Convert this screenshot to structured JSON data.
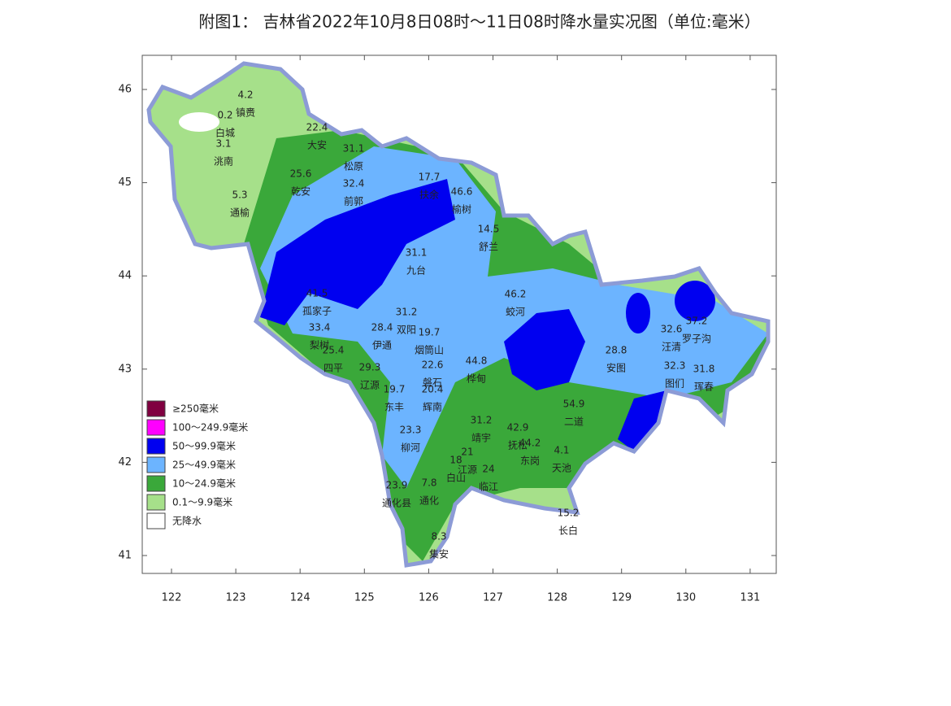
{
  "title": "附图1： 吉林省2022年10月8日08时～11日08时降水量实况图（单位:毫米）",
  "axes": {
    "lon_ticks": [
      122,
      123,
      124,
      125,
      126,
      127,
      128,
      129,
      130,
      131
    ],
    "lat_ticks": [
      41,
      42,
      43,
      44,
      45,
      46
    ]
  },
  "legend": [
    {
      "label": "≥250毫米",
      "color": "#800040"
    },
    {
      "label": "100～249.9毫米",
      "color": "#ff00ff"
    },
    {
      "label": "50～99.9毫米",
      "color": "#0000f0"
    },
    {
      "label": "25～49.9毫米",
      "color": "#6cb4ff"
    },
    {
      "label": "10～24.9毫米",
      "color": "#3aa83a"
    },
    {
      "label": "0.1～9.9毫米",
      "color": "#a6e08a"
    },
    {
      "label": "无降水",
      "color": "#ffffff"
    }
  ],
  "stations": [
    {
      "value": 4.2,
      "name": "镇赉"
    },
    {
      "value": 0.2,
      "name": "白城"
    },
    {
      "value": 3.1,
      "name": "洮南"
    },
    {
      "value": 5.3,
      "name": "通榆"
    },
    {
      "value": 22.4,
      "name": "大安"
    },
    {
      "value": 31.1,
      "name": "松原"
    },
    {
      "value": 25.6,
      "name": "乾安"
    },
    {
      "value": 32.4,
      "name": "前郭"
    },
    {
      "value": 17.7,
      "name": "扶余"
    },
    {
      "value": 46.6,
      "name": "榆树"
    },
    {
      "value": 14.5,
      "name": "舒兰"
    },
    {
      "value": 31.1,
      "name": "九台"
    },
    {
      "value": 46.2,
      "name": "蛟河"
    },
    {
      "value": 41.5,
      "name": "孤家子"
    },
    {
      "value": 33.4,
      "name": "梨树"
    },
    {
      "value": 25.4,
      "name": "四平"
    },
    {
      "value": 28.4,
      "name": "伊通"
    },
    {
      "value": 31.2,
      "name": "双阳"
    },
    {
      "value": 19.7,
      "name": "烟筒山"
    },
    {
      "value": 44.8,
      "name": "桦甸"
    },
    {
      "value": 22.6,
      "name": "磐石"
    },
    {
      "value": 29.3,
      "name": "辽源"
    },
    {
      "value": 19.7,
      "name": "东丰"
    },
    {
      "value": 20.4,
      "name": "辉南"
    },
    {
      "value": 23.3,
      "name": "柳河"
    },
    {
      "value": 31.2,
      "name": "靖宇"
    },
    {
      "value": 42.9,
      "name": "抚松"
    },
    {
      "value": 44.2,
      "name": "东岗"
    },
    {
      "value": 54.9,
      "name": "二道"
    },
    {
      "value": 4.1,
      "name": "天池"
    },
    {
      "value": 21,
      "name": "江源"
    },
    {
      "value": 18,
      "name": "白山"
    },
    {
      "value": 24,
      "name": "临江"
    },
    {
      "value": 23.9,
      "name": "通化县"
    },
    {
      "value": 7.8,
      "name": "通化"
    },
    {
      "value": 15.2,
      "name": "长白"
    },
    {
      "value": 8.3,
      "name": "集安"
    },
    {
      "value": 28.8,
      "name": "安图"
    },
    {
      "value": 32.6,
      "name": "汪清"
    },
    {
      "value": 32.3,
      "name": "图们"
    },
    {
      "value": 37.2,
      "name": "罗子沟"
    },
    {
      "value": 31.8,
      "name": "珲春"
    }
  ]
}
